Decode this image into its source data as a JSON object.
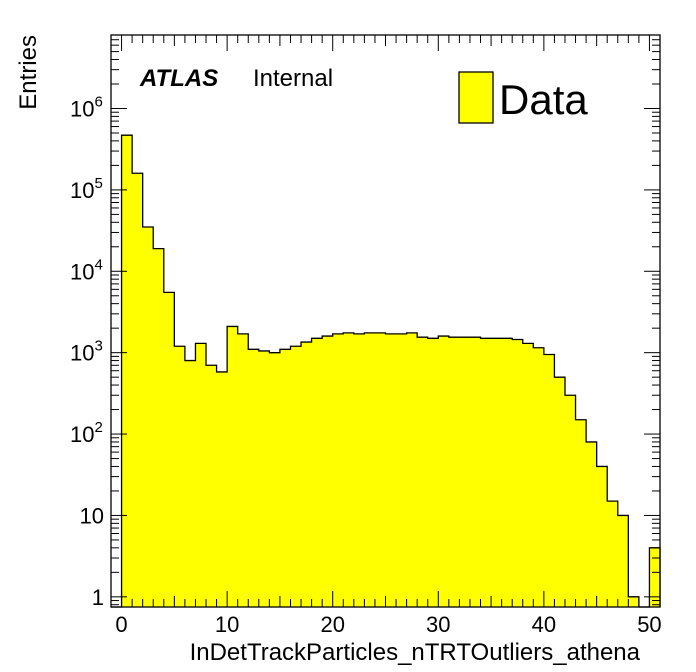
{
  "chart_data": {
    "type": "bar",
    "xlabel": "InDetTrackParticles_nTRTOutliers_athena",
    "ylabel": "Entries",
    "xlim": [
      -1,
      51
    ],
    "ylim": [
      0.75,
      8000000
    ],
    "yscale": "log",
    "bin_width": 1,
    "bin_edges_start": -1,
    "x_ticks": [
      "0",
      "10",
      "20",
      "30",
      "40",
      "50"
    ],
    "y_ticks": [
      {
        "value": 1,
        "base": "1",
        "exp": ""
      },
      {
        "value": 10,
        "base": "10",
        "exp": ""
      },
      {
        "value": 100,
        "base": "10",
        "exp": "2"
      },
      {
        "value": 1000,
        "base": "10",
        "exp": "3"
      },
      {
        "value": 10000,
        "base": "10",
        "exp": "4"
      },
      {
        "value": 100000,
        "base": "10",
        "exp": "5"
      },
      {
        "value": 1000000,
        "base": "10",
        "exp": "6"
      }
    ],
    "series": [
      {
        "name": "Data",
        "color": "#ffff00",
        "values": [
          0,
          470000,
          160000,
          35000,
          19000,
          5500,
          1200,
          800,
          1300,
          700,
          580,
          2100,
          1700,
          1100,
          1050,
          1000,
          1100,
          1200,
          1350,
          1500,
          1600,
          1700,
          1750,
          1700,
          1750,
          1750,
          1700,
          1700,
          1750,
          1550,
          1500,
          1600,
          1550,
          1550,
          1550,
          1500,
          1500,
          1500,
          1450,
          1300,
          1150,
          950,
          500,
          300,
          150,
          80,
          40,
          15,
          10,
          1,
          0,
          4
        ]
      }
    ],
    "annotation": {
      "atlas": "ATLAS",
      "status": "Internal"
    },
    "legend": {
      "position": "top-right",
      "label": "Data"
    },
    "colors": {
      "fill": "#ffff00",
      "edge": "#000000"
    }
  }
}
